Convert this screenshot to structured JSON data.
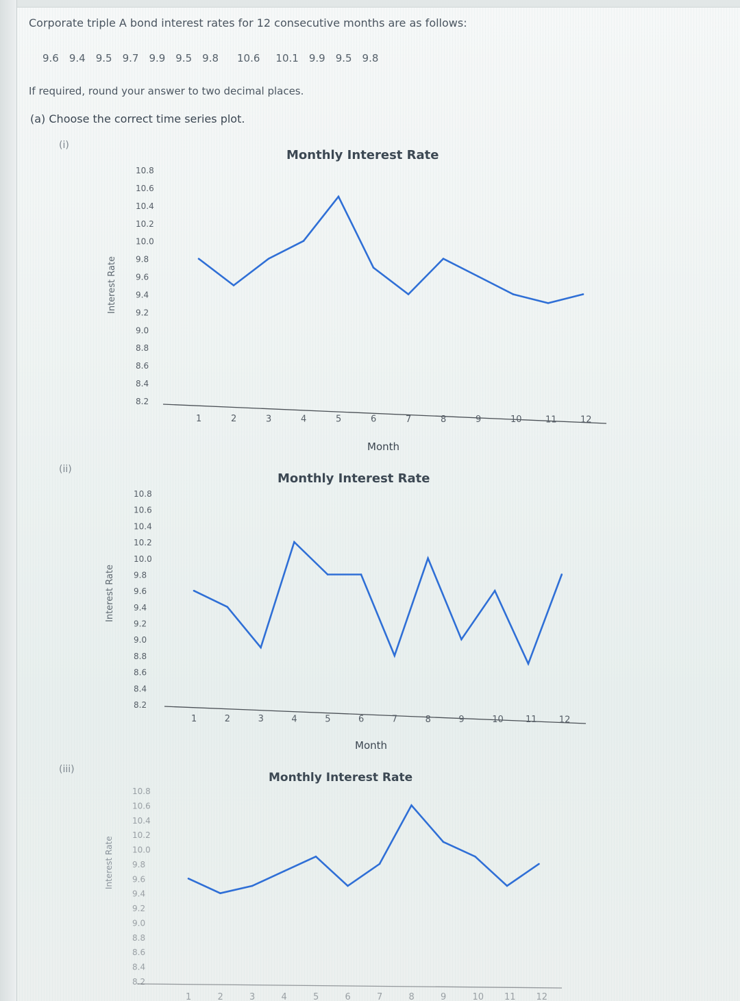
{
  "problem": {
    "statement": "Corporate triple A bond interest rates for 12 consecutive months are as follows:",
    "values": [
      "9.6",
      "9.4",
      "9.5",
      "9.7",
      "9.9",
      "9.5",
      "9.8",
      "10.6",
      "10.1",
      "9.9",
      "9.5",
      "9.8"
    ],
    "rounding_note": "If required, round your answer to two decimal places.",
    "question": "(a) Choose the correct time series plot."
  },
  "options": [
    {
      "label": "(i)",
      "title": "Monthly Interest Rate",
      "ylabel": "Interest Rate",
      "xlabel": "Month"
    },
    {
      "label": "(ii)",
      "title": "Monthly Interest Rate",
      "ylabel": "Interest Rate",
      "xlabel": "Month"
    },
    {
      "label": "(iii)",
      "title": "Monthly Interest Rate",
      "ylabel": "Interest Rate",
      "xlabel": ""
    }
  ],
  "colors": {
    "line": "#2f6fd6",
    "axis": "#4a4f55",
    "tick": "#555d66"
  },
  "chart_data": [
    {
      "type": "line",
      "title": "Monthly Interest Rate",
      "xlabel": "Month",
      "ylabel": "Interest Rate",
      "categories": [
        "1",
        "2",
        "3",
        "4",
        "5",
        "6",
        "7",
        "8",
        "9",
        "10",
        "11",
        "12"
      ],
      "yticks": [
        "8.2",
        "8.4",
        "8.6",
        "8.8",
        "9.0",
        "9.2",
        "9.4",
        "9.6",
        "9.8",
        "10.0",
        "10.2",
        "10.4",
        "10.6",
        "10.8"
      ],
      "ylim": [
        8.2,
        10.8
      ],
      "values": [
        9.8,
        9.5,
        9.8,
        10.0,
        10.5,
        9.7,
        9.4,
        9.8,
        9.6,
        9.4,
        9.3,
        9.4
      ]
    },
    {
      "type": "line",
      "title": "Monthly Interest Rate",
      "xlabel": "Month",
      "ylabel": "Interest Rate",
      "categories": [
        "1",
        "2",
        "3",
        "4",
        "5",
        "6",
        "7",
        "8",
        "9",
        "10",
        "11",
        "12"
      ],
      "yticks": [
        "8.2",
        "8.4",
        "8.6",
        "8.8",
        "9.0",
        "9.2",
        "9.4",
        "9.6",
        "9.8",
        "10.0",
        "10.2",
        "10.4",
        "10.6",
        "10.8"
      ],
      "ylim": [
        8.2,
        10.8
      ],
      "values": [
        9.6,
        9.4,
        8.9,
        10.2,
        9.8,
        9.8,
        8.8,
        10.0,
        9.0,
        9.6,
        8.7,
        9.8
      ]
    },
    {
      "type": "line",
      "title": "Monthly Interest Rate",
      "xlabel": "",
      "ylabel": "Interest Rate",
      "categories": [
        "1",
        "2",
        "3",
        "4",
        "5",
        "6",
        "7",
        "8",
        "9",
        "10",
        "11",
        "12"
      ],
      "yticks": [
        "8.2",
        "8.4",
        "8.6",
        "8.8",
        "9.0",
        "9.2",
        "9.4",
        "9.6",
        "9.8",
        "10.0",
        "10.2",
        "10.4",
        "10.6",
        "10.8"
      ],
      "ylim": [
        8.2,
        10.8
      ],
      "values": [
        9.6,
        9.4,
        9.5,
        9.7,
        9.9,
        9.5,
        9.8,
        10.6,
        10.1,
        9.9,
        9.5,
        9.8
      ]
    }
  ]
}
